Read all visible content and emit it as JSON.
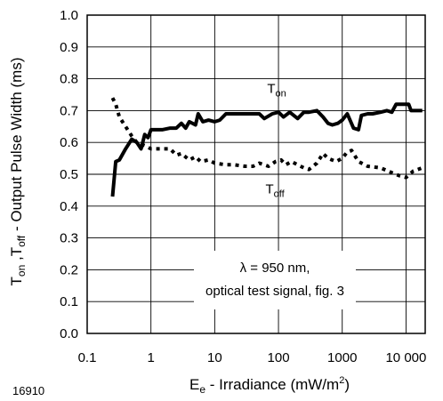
{
  "figure_id": "16910",
  "chart_data": {
    "type": "line",
    "title": "",
    "xlabel": {
      "main": "E",
      "sub": "e",
      "rest": " - Irradiance (mW/m",
      "sup": "2",
      "end": ")"
    },
    "ylabel": {
      "t1": "T",
      "s1": "on",
      "mid": " ,T",
      "s2": "off",
      "rest": " - Output Pulse Width (ms)"
    },
    "x_scale": "log",
    "xlim": [
      0.1,
      20000
    ],
    "ylim": [
      0.0,
      1.0
    ],
    "x_ticks": [
      {
        "value": 0.1,
        "label": "0.1"
      },
      {
        "value": 1,
        "label": "1"
      },
      {
        "value": 10,
        "label": "10"
      },
      {
        "value": 100,
        "label": "100"
      },
      {
        "value": 1000,
        "label": "1000"
      },
      {
        "value": 10000,
        "label": "10 000"
      }
    ],
    "y_ticks": [
      {
        "value": 0.0,
        "label": "0.0"
      },
      {
        "value": 0.1,
        "label": "0.1"
      },
      {
        "value": 0.2,
        "label": "0.2"
      },
      {
        "value": 0.3,
        "label": "0.3"
      },
      {
        "value": 0.4,
        "label": "0.4"
      },
      {
        "value": 0.5,
        "label": "0.5"
      },
      {
        "value": 0.6,
        "label": "0.6"
      },
      {
        "value": 0.7,
        "label": "0.7"
      },
      {
        "value": 0.8,
        "label": "0.8"
      },
      {
        "value": 0.9,
        "label": "0.9"
      },
      {
        "value": 1.0,
        "label": "1.0"
      }
    ],
    "grid": true,
    "series": [
      {
        "key": "ton",
        "line_style": "solid",
        "color": "#000000",
        "label": {
          "main": "T",
          "sub": "on",
          "at": [
            100,
            0.755
          ]
        },
        "points": [
          [
            0.25,
            0.43
          ],
          [
            0.28,
            0.54
          ],
          [
            0.32,
            0.545
          ],
          [
            0.4,
            0.58
          ],
          [
            0.5,
            0.61
          ],
          [
            0.6,
            0.6
          ],
          [
            0.7,
            0.58
          ],
          [
            0.8,
            0.625
          ],
          [
            0.9,
            0.615
          ],
          [
            1.0,
            0.64
          ],
          [
            1.5,
            0.64
          ],
          [
            2.0,
            0.645
          ],
          [
            2.5,
            0.645
          ],
          [
            3.0,
            0.66
          ],
          [
            3.5,
            0.645
          ],
          [
            4.0,
            0.665
          ],
          [
            5.0,
            0.655
          ],
          [
            5.5,
            0.69
          ],
          [
            6.5,
            0.665
          ],
          [
            8,
            0.67
          ],
          [
            10,
            0.665
          ],
          [
            12,
            0.67
          ],
          [
            15,
            0.69
          ],
          [
            20,
            0.69
          ],
          [
            30,
            0.69
          ],
          [
            50,
            0.69
          ],
          [
            60,
            0.675
          ],
          [
            80,
            0.69
          ],
          [
            100,
            0.695
          ],
          [
            120,
            0.68
          ],
          [
            150,
            0.695
          ],
          [
            200,
            0.675
          ],
          [
            250,
            0.695
          ],
          [
            300,
            0.695
          ],
          [
            400,
            0.7
          ],
          [
            500,
            0.68
          ],
          [
            600,
            0.66
          ],
          [
            700,
            0.655
          ],
          [
            850,
            0.66
          ],
          [
            1000,
            0.67
          ],
          [
            1200,
            0.69
          ],
          [
            1500,
            0.645
          ],
          [
            1800,
            0.64
          ],
          [
            2000,
            0.685
          ],
          [
            2500,
            0.69
          ],
          [
            3000,
            0.69
          ],
          [
            4000,
            0.695
          ],
          [
            5000,
            0.7
          ],
          [
            6000,
            0.695
          ],
          [
            7000,
            0.72
          ],
          [
            9000,
            0.72
          ],
          [
            11000,
            0.72
          ],
          [
            12000,
            0.7
          ],
          [
            18000,
            0.7
          ]
        ]
      },
      {
        "key": "toff",
        "line_style": "dotted",
        "color": "#000000",
        "label": {
          "main": "T",
          "sub": "off",
          "at": [
            100,
            0.44
          ]
        },
        "points": [
          [
            0.25,
            0.74
          ],
          [
            0.28,
            0.72
          ],
          [
            0.32,
            0.68
          ],
          [
            0.4,
            0.65
          ],
          [
            0.5,
            0.62
          ],
          [
            0.6,
            0.6
          ],
          [
            0.8,
            0.59
          ],
          [
            1.0,
            0.58
          ],
          [
            1.5,
            0.58
          ],
          [
            2.0,
            0.58
          ],
          [
            2.5,
            0.56
          ],
          [
            3.0,
            0.565
          ],
          [
            4.0,
            0.545
          ],
          [
            5.0,
            0.555
          ],
          [
            6.0,
            0.54
          ],
          [
            8.0,
            0.545
          ],
          [
            10,
            0.535
          ],
          [
            15,
            0.53
          ],
          [
            20,
            0.53
          ],
          [
            30,
            0.525
          ],
          [
            40,
            0.525
          ],
          [
            50,
            0.535
          ],
          [
            70,
            0.525
          ],
          [
            90,
            0.54
          ],
          [
            110,
            0.545
          ],
          [
            130,
            0.53
          ],
          [
            160,
            0.54
          ],
          [
            200,
            0.53
          ],
          [
            250,
            0.52
          ],
          [
            300,
            0.515
          ],
          [
            400,
            0.535
          ],
          [
            500,
            0.565
          ],
          [
            600,
            0.55
          ],
          [
            800,
            0.54
          ],
          [
            1000,
            0.55
          ],
          [
            1200,
            0.57
          ],
          [
            1400,
            0.575
          ],
          [
            1800,
            0.54
          ],
          [
            2500,
            0.525
          ],
          [
            4000,
            0.52
          ],
          [
            6000,
            0.505
          ],
          [
            8000,
            0.495
          ],
          [
            10000,
            0.49
          ],
          [
            13000,
            0.51
          ],
          [
            18000,
            0.52
          ]
        ]
      }
    ],
    "annotation": {
      "lines": [
        "λ = 950 nm,",
        "optical test signal, fig. 3"
      ]
    }
  }
}
